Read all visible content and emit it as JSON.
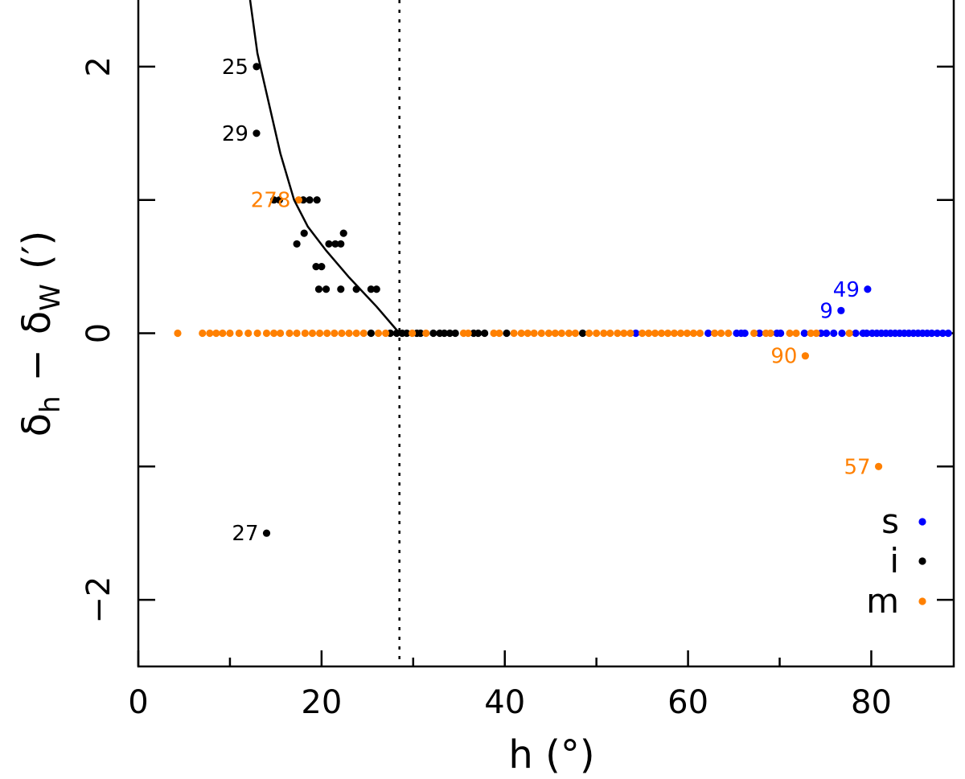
{
  "chart_data": {
    "type": "scatter",
    "xlabel": "h (°)",
    "ylabel_parts": {
      "main": "δ",
      "sub1": "h",
      "minus": "−",
      "sub2": "W",
      "unit": "(′)"
    },
    "xlim": [
      0,
      89
    ],
    "ylim": [
      -2.5,
      2.5
    ],
    "xticks": [
      0,
      20,
      40,
      60,
      80
    ],
    "xtick_labels": [
      "0",
      "20",
      "40",
      "60",
      "80"
    ],
    "xminor": [
      10,
      30,
      50,
      70
    ],
    "yticks": [
      -2,
      0,
      2
    ],
    "ytick_labels": [
      "−2",
      "0",
      "2"
    ],
    "yminor": [
      -1,
      1
    ],
    "vline": 28.5,
    "colors": {
      "s": "#0000ff",
      "i": "#000000",
      "m": "#ff8000"
    },
    "legend": [
      {
        "key": "s",
        "label": "s"
      },
      {
        "key": "i",
        "label": "i"
      },
      {
        "key": "m",
        "label": "m"
      }
    ],
    "curve": {
      "x": [
        12.2,
        13.0,
        14.0,
        15.5,
        17.0,
        18.5,
        20.5,
        23.0,
        26.0,
        28.5
      ],
      "y": [
        2.5,
        2.1,
        1.8,
        1.35,
        1.0,
        0.8,
        0.62,
        0.42,
        0.2,
        0.0
      ]
    },
    "series": [
      {
        "name": "s",
        "color_key": "s",
        "points": [
          [
            54.3,
            0
          ],
          [
            62.2,
            0
          ],
          [
            65.3,
            0
          ],
          [
            65.8,
            0
          ],
          [
            66.2,
            0
          ],
          [
            67.8,
            0
          ],
          [
            69.7,
            0
          ],
          [
            70.1,
            0
          ],
          [
            72.7,
            0
          ],
          [
            74.5,
            0
          ],
          [
            75.1,
            0
          ],
          [
            75.9,
            0
          ],
          [
            76.8,
            0
          ],
          [
            78.3,
            0
          ],
          [
            79.1,
            0
          ],
          [
            79.5,
            0
          ],
          [
            80.1,
            0
          ],
          [
            80.6,
            0
          ],
          [
            81.1,
            0
          ],
          [
            81.6,
            0
          ],
          [
            82.1,
            0
          ],
          [
            82.6,
            0
          ],
          [
            83.1,
            0
          ],
          [
            83.6,
            0
          ],
          [
            84.1,
            0
          ],
          [
            84.6,
            0
          ],
          [
            85.1,
            0
          ],
          [
            85.6,
            0
          ],
          [
            86.1,
            0
          ],
          [
            86.6,
            0
          ],
          [
            87.2,
            0
          ],
          [
            87.8,
            0
          ],
          [
            88.4,
            0
          ],
          [
            76.7,
            0.17
          ],
          [
            79.6,
            0.33
          ]
        ]
      },
      {
        "name": "i",
        "color_key": "i",
        "points": [
          [
            12.9,
            2.0
          ],
          [
            12.9,
            1.5
          ],
          [
            14.8,
            1.0
          ],
          [
            15.4,
            1.0
          ],
          [
            18.0,
            1.0
          ],
          [
            18.7,
            1.0
          ],
          [
            19.5,
            1.0
          ],
          [
            18.1,
            0.75
          ],
          [
            22.4,
            0.75
          ],
          [
            17.3,
            0.67
          ],
          [
            20.8,
            0.67
          ],
          [
            21.5,
            0.67
          ],
          [
            22.1,
            0.67
          ],
          [
            19.4,
            0.5
          ],
          [
            20.0,
            0.5
          ],
          [
            19.7,
            0.33
          ],
          [
            20.5,
            0.33
          ],
          [
            22.1,
            0.33
          ],
          [
            23.8,
            0.33
          ],
          [
            25.4,
            0.33
          ],
          [
            26.0,
            0.33
          ],
          [
            25.4,
            0
          ],
          [
            27.5,
            0
          ],
          [
            28.2,
            0
          ],
          [
            28.8,
            0
          ],
          [
            29.3,
            0
          ],
          [
            30.4,
            0
          ],
          [
            30.8,
            0
          ],
          [
            32.2,
            0
          ],
          [
            32.9,
            0
          ],
          [
            33.4,
            0
          ],
          [
            34.0,
            0
          ],
          [
            34.6,
            0
          ],
          [
            36.6,
            0
          ],
          [
            37.1,
            0
          ],
          [
            37.8,
            0
          ],
          [
            40.2,
            0
          ],
          [
            48.5,
            0
          ],
          [
            14.0,
            -1.5
          ]
        ]
      },
      {
        "name": "m",
        "color_key": "m",
        "points": [
          [
            17.5,
            1.0
          ],
          [
            72.8,
            -0.17
          ],
          [
            80.8,
            -1.0
          ],
          [
            4.3,
            0
          ],
          [
            7.0,
            0
          ],
          [
            7.8,
            0
          ],
          [
            8.5,
            0
          ],
          [
            9.2,
            0
          ],
          [
            10.0,
            0
          ],
          [
            11.0,
            0
          ],
          [
            12.0,
            0
          ],
          [
            13.0,
            0
          ],
          [
            14.0,
            0
          ],
          [
            14.8,
            0
          ],
          [
            15.5,
            0
          ],
          [
            16.5,
            0
          ],
          [
            17.3,
            0
          ],
          [
            18.2,
            0
          ],
          [
            19.0,
            0
          ],
          [
            19.8,
            0
          ],
          [
            20.6,
            0
          ],
          [
            21.4,
            0
          ],
          [
            22.2,
            0
          ],
          [
            23.0,
            0
          ],
          [
            23.8,
            0
          ],
          [
            24.6,
            0
          ],
          [
            26.2,
            0
          ],
          [
            27.0,
            0
          ],
          [
            29.9,
            0
          ],
          [
            31.4,
            0
          ],
          [
            35.5,
            0
          ],
          [
            36.0,
            0
          ],
          [
            38.8,
            0
          ],
          [
            39.4,
            0
          ],
          [
            41.0,
            0
          ],
          [
            41.8,
            0
          ],
          [
            42.5,
            0
          ],
          [
            43.2,
            0
          ],
          [
            44.0,
            0
          ],
          [
            44.8,
            0
          ],
          [
            45.5,
            0
          ],
          [
            46.2,
            0
          ],
          [
            47.0,
            0
          ],
          [
            47.7,
            0
          ],
          [
            49.2,
            0
          ],
          [
            50.0,
            0
          ],
          [
            50.8,
            0
          ],
          [
            51.5,
            0
          ],
          [
            52.3,
            0
          ],
          [
            53.0,
            0
          ],
          [
            53.7,
            0
          ],
          [
            55.0,
            0
          ],
          [
            55.7,
            0
          ],
          [
            56.4,
            0
          ],
          [
            57.1,
            0
          ],
          [
            57.8,
            0
          ],
          [
            58.5,
            0
          ],
          [
            59.2,
            0
          ],
          [
            59.9,
            0
          ],
          [
            60.6,
            0
          ],
          [
            61.3,
            0
          ],
          [
            62.9,
            0
          ],
          [
            63.6,
            0
          ],
          [
            64.4,
            0
          ],
          [
            67.2,
            0
          ],
          [
            68.5,
            0
          ],
          [
            69.0,
            0
          ],
          [
            71.1,
            0
          ],
          [
            71.8,
            0
          ],
          [
            73.4,
            0
          ],
          [
            74.0,
            0
          ],
          [
            77.6,
            0
          ]
        ]
      }
    ],
    "annotations": [
      {
        "text": "25",
        "x": 12.9,
        "y": 2.0,
        "color_key": "i"
      },
      {
        "text": "29",
        "x": 12.9,
        "y": 1.5,
        "color_key": "i"
      },
      {
        "text": "278",
        "x": 17.5,
        "y": 1.0,
        "color_key": "m"
      },
      {
        "text": "27",
        "x": 14.0,
        "y": -1.5,
        "color_key": "i"
      },
      {
        "text": "49",
        "x": 79.6,
        "y": 0.33,
        "color_key": "s"
      },
      {
        "text": "9",
        "x": 76.7,
        "y": 0.17,
        "color_key": "s"
      },
      {
        "text": "90",
        "x": 72.8,
        "y": -0.17,
        "color_key": "m"
      },
      {
        "text": "57",
        "x": 80.8,
        "y": -1.0,
        "color_key": "m"
      }
    ]
  }
}
